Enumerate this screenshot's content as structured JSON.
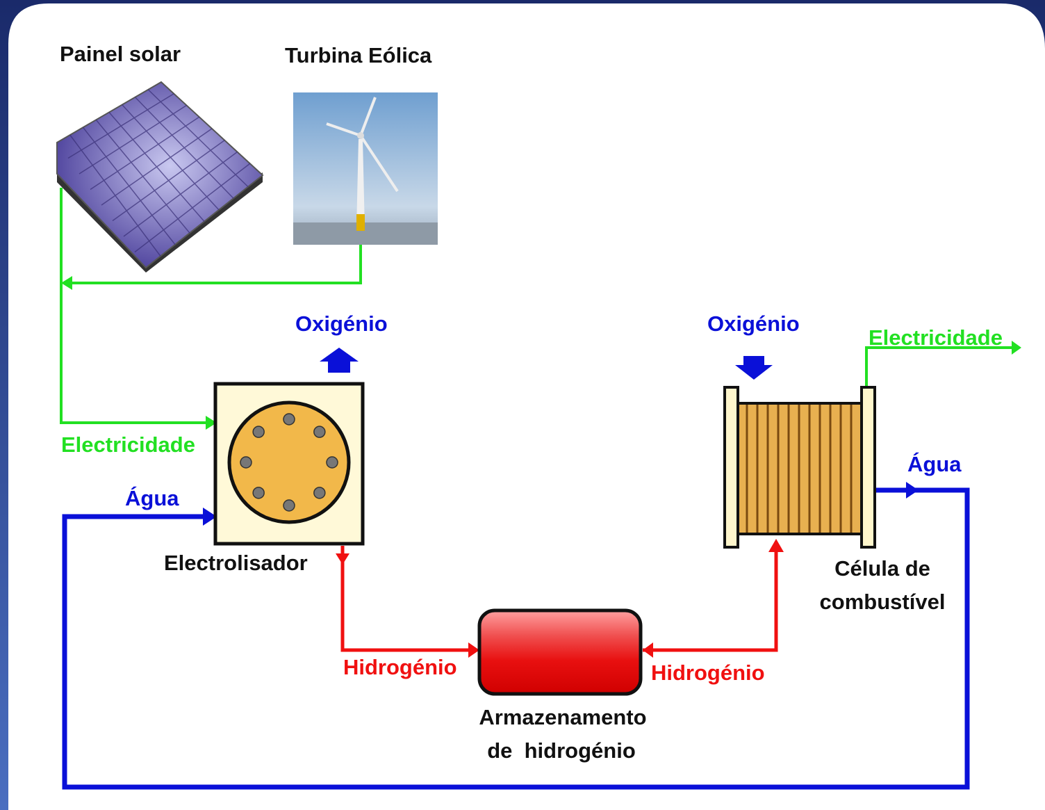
{
  "labels": {
    "solar_panel": "Painel solar",
    "wind_turbine": "Turbina Eólica",
    "oxygen_left": "Oxigénio",
    "oxygen_right": "Oxigénio",
    "electricity_left": "Electricidade",
    "electricity_right": "Electricidade",
    "water_left": "Água",
    "water_right": "Água",
    "electrolyser": "Electrolisador",
    "hydrogen_left": "Hidrogénio",
    "hydrogen_right": "Hidrogénio",
    "storage": [
      "Armazenamento",
      "de  hidrogénio"
    ],
    "fuel_cell": [
      "Célula de",
      "combustível"
    ]
  }
}
